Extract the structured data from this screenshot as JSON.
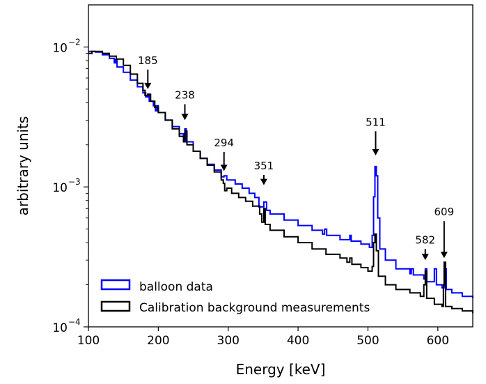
{
  "chart_data": {
    "type": "line",
    "title": "",
    "xlabel": "Energy [keV]",
    "ylabel": "arbitrary units",
    "xlim": [
      100,
      650
    ],
    "ylim": [
      0.0001,
      0.02
    ],
    "yscale": "log",
    "grid": false,
    "legend_position": "lower-left",
    "x_ticks": [
      {
        "value": 100,
        "label": "100"
      },
      {
        "value": 200,
        "label": "200"
      },
      {
        "value": 300,
        "label": "300"
      },
      {
        "value": 400,
        "label": "400"
      },
      {
        "value": 500,
        "label": "500"
      },
      {
        "value": 600,
        "label": "600"
      }
    ],
    "y_ticks": [
      {
        "value": 0.01,
        "base": "10",
        "exp": "−2"
      },
      {
        "value": 0.001,
        "base": "10",
        "exp": "−3"
      },
      {
        "value": 0.0001,
        "base": "10",
        "exp": "−4"
      }
    ],
    "series": [
      {
        "name": "balloon data",
        "color": "#0000ff",
        "points": [
          [
            100,
            0.0093
          ],
          [
            110,
            0.0092
          ],
          [
            120,
            0.0088
          ],
          [
            130,
            0.0083
          ],
          [
            137,
            0.0077
          ],
          [
            139,
            0.0081
          ],
          [
            141,
            0.0072
          ],
          [
            150,
            0.0066
          ],
          [
            160,
            0.0058
          ],
          [
            170,
            0.0052
          ],
          [
            178,
            0.0047
          ],
          [
            182,
            0.0044
          ],
          [
            185,
            0.0046
          ],
          [
            187,
            0.0041
          ],
          [
            193,
            0.0038
          ],
          [
            196,
            0.0035
          ],
          [
            198,
            0.0038
          ],
          [
            200,
            0.0034
          ],
          [
            210,
            0.003
          ],
          [
            220,
            0.0027
          ],
          [
            230,
            0.0024
          ],
          [
            236,
            0.0022
          ],
          [
            238,
            0.0026
          ],
          [
            240,
            0.0021
          ],
          [
            250,
            0.0018
          ],
          [
            260,
            0.0016
          ],
          [
            270,
            0.00145
          ],
          [
            280,
            0.00132
          ],
          [
            290,
            0.00118
          ],
          [
            294,
            0.0012
          ],
          [
            298,
            0.00112
          ],
          [
            310,
            0.00105
          ],
          [
            320,
            0.00098
          ],
          [
            330,
            0.0009
          ],
          [
            338,
            0.00084
          ],
          [
            344,
            0.00072
          ],
          [
            351,
            0.00078
          ],
          [
            355,
            0.00068
          ],
          [
            360,
            0.00064
          ],
          [
            380,
            0.00058
          ],
          [
            400,
            0.00053
          ],
          [
            420,
            0.00049
          ],
          [
            435,
            0.00046
          ],
          [
            438,
            0.0005
          ],
          [
            441,
            0.00045
          ],
          [
            460,
            0.00042
          ],
          [
            472,
            0.00042
          ],
          [
            474,
            0.00045
          ],
          [
            476,
            0.00041
          ],
          [
            490,
            0.00039
          ],
          [
            502,
            0.00037
          ],
          [
            506,
            0.00045
          ],
          [
            508,
            0.00085
          ],
          [
            510,
            0.0014
          ],
          [
            512,
            0.0012
          ],
          [
            514,
            0.0006
          ],
          [
            517,
            0.00036
          ],
          [
            525,
            0.0003
          ],
          [
            540,
            0.00026
          ],
          [
            560,
            0.00024
          ],
          [
            562,
            0.00026
          ],
          [
            565,
            0.000235
          ],
          [
            580,
            0.00022
          ],
          [
            582,
            0.00026
          ],
          [
            584,
            0.00021
          ],
          [
            592,
            0.00021
          ],
          [
            595,
            0.00026
          ],
          [
            598,
            0.0002
          ],
          [
            606,
            0.00019
          ],
          [
            609,
            0.00026
          ],
          [
            612,
            0.000185
          ],
          [
            620,
            0.000175
          ],
          [
            635,
            0.000165
          ],
          [
            650,
            0.00016
          ]
        ]
      },
      {
        "name": "Calibration background measurements",
        "color": "#000000",
        "points": [
          [
            100,
            0.009
          ],
          [
            105,
            0.0093
          ],
          [
            110,
            0.0093
          ],
          [
            120,
            0.009
          ],
          [
            130,
            0.0086
          ],
          [
            140,
            0.0082
          ],
          [
            150,
            0.0074
          ],
          [
            160,
            0.0064
          ],
          [
            170,
            0.0055
          ],
          [
            178,
            0.0049
          ],
          [
            181,
            0.0045
          ],
          [
            185,
            0.0046
          ],
          [
            189,
            0.0041
          ],
          [
            195,
            0.0037
          ],
          [
            200,
            0.0034
          ],
          [
            210,
            0.003
          ],
          [
            220,
            0.0026
          ],
          [
            230,
            0.0023
          ],
          [
            236,
            0.0021
          ],
          [
            238,
            0.0025
          ],
          [
            241,
            0.002
          ],
          [
            250,
            0.0018
          ],
          [
            260,
            0.0016
          ],
          [
            270,
            0.00143
          ],
          [
            280,
            0.00128
          ],
          [
            290,
            0.00112
          ],
          [
            293,
            0.00106
          ],
          [
            295,
            0.00094
          ],
          [
            298,
            0.00098
          ],
          [
            305,
            0.0009
          ],
          [
            315,
            0.00084
          ],
          [
            325,
            0.00079
          ],
          [
            335,
            0.00073
          ],
          [
            345,
            0.00064
          ],
          [
            348,
            0.00056
          ],
          [
            351,
            0.0007
          ],
          [
            353,
            0.00054
          ],
          [
            360,
            0.00049
          ],
          [
            380,
            0.00044
          ],
          [
            400,
            0.0004
          ],
          [
            420,
            0.00036
          ],
          [
            440,
            0.00033
          ],
          [
            460,
            0.00031
          ],
          [
            470,
            0.00029
          ],
          [
            474,
            0.00031
          ],
          [
            477,
            0.00028
          ],
          [
            490,
            0.000265
          ],
          [
            500,
            0.00025
          ],
          [
            506,
            0.00027
          ],
          [
            508,
            0.0004
          ],
          [
            510,
            0.00046
          ],
          [
            512,
            0.00035
          ],
          [
            515,
            0.00023
          ],
          [
            525,
            0.0002
          ],
          [
            540,
            0.000185
          ],
          [
            560,
            0.000175
          ],
          [
            575,
            0.000165
          ],
          [
            580,
            0.0002
          ],
          [
            582,
            0.00025
          ],
          [
            584,
            0.00016
          ],
          [
            595,
            0.000145
          ],
          [
            606,
            0.00014
          ],
          [
            608,
            0.0002
          ],
          [
            609,
            0.00029
          ],
          [
            611,
            0.00014
          ],
          [
            620,
            0.000135
          ],
          [
            635,
            0.00013
          ],
          [
            650,
            0.000125
          ]
        ]
      }
    ],
    "annotations": [
      {
        "text": "185",
        "x": 185,
        "y_top": 0.0069,
        "y_bottom": 0.005
      },
      {
        "text": "238",
        "x": 238,
        "y_top": 0.0039,
        "y_bottom": 0.003
      },
      {
        "text": "294",
        "x": 294,
        "y_top": 0.00178,
        "y_bottom": 0.0013
      },
      {
        "text": "351",
        "x": 351,
        "y_top": 0.00122,
        "y_bottom": 0.00103
      },
      {
        "text": "511",
        "x": 511,
        "y_top": 0.0025,
        "y_bottom": 0.00168
      },
      {
        "text": "582",
        "x": 582,
        "y_top": 0.00036,
        "y_bottom": 0.0003
      },
      {
        "text": "609",
        "x": 609,
        "y_top": 0.00057,
        "y_bottom": 0.00031
      }
    ]
  }
}
